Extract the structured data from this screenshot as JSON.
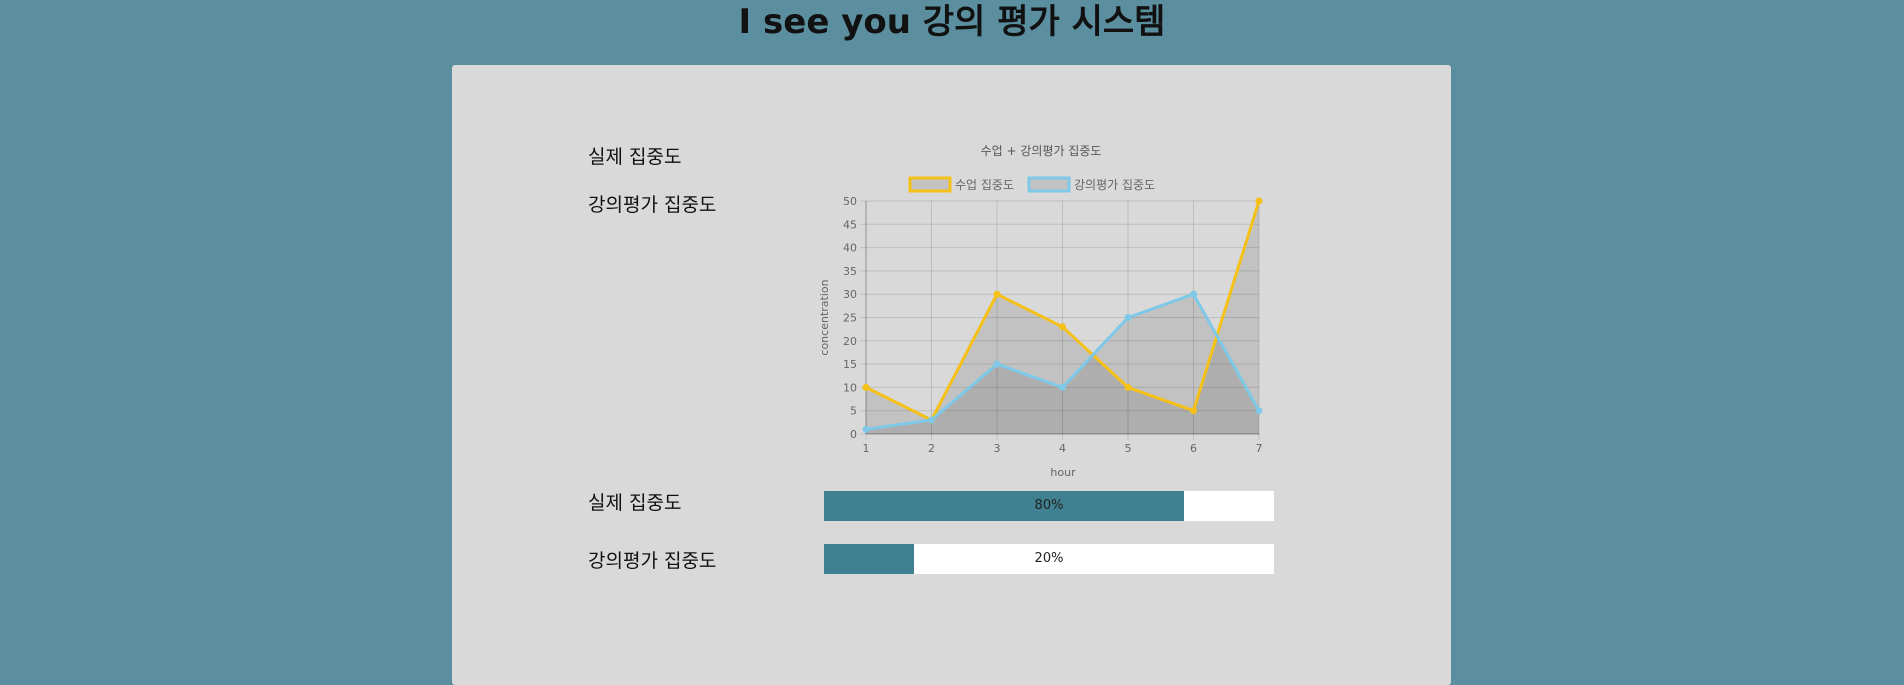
{
  "header": {
    "title": "I see you 강의 평가 시스템"
  },
  "labels": {
    "real_focus_top": "실제 집중도",
    "eval_focus_top": "강의평가 집중도",
    "real_focus_bottom": "실제 집중도",
    "eval_focus_bottom": "강의평가 집중도"
  },
  "progress": {
    "real": {
      "value": 0.8,
      "text": "80%"
    },
    "eval": {
      "value": 0.2,
      "text": "20%"
    }
  },
  "colors": {
    "background": "#5b8f9f",
    "panel": "#d9d9d9",
    "series_1": "#f5c118",
    "series_2": "#7ec8e8",
    "bar_fill": "#3f8190"
  },
  "chart_data": {
    "type": "line",
    "title": "수업 + 강의평가 집중도",
    "xlabel": "hour",
    "ylabel": "concentration",
    "x": [
      1,
      2,
      3,
      4,
      5,
      6,
      7
    ],
    "x_ticks": [
      "1",
      "2",
      "3",
      "4",
      "5",
      "6",
      "7"
    ],
    "y_ticks": [
      "0",
      "5",
      "10",
      "15",
      "20",
      "25",
      "30",
      "35",
      "40",
      "45",
      "50"
    ],
    "ylim": [
      0,
      50
    ],
    "grid": true,
    "legend_position": "top",
    "series": [
      {
        "name": "수업 집중도",
        "values": [
          10,
          3,
          30,
          23,
          10,
          5,
          50
        ],
        "color": "#f5c118",
        "fill": true
      },
      {
        "name": "강의평가 집중도",
        "values": [
          1,
          3,
          15,
          10,
          25,
          30,
          5
        ],
        "color": "#7ec8e8",
        "fill": true
      }
    ]
  }
}
